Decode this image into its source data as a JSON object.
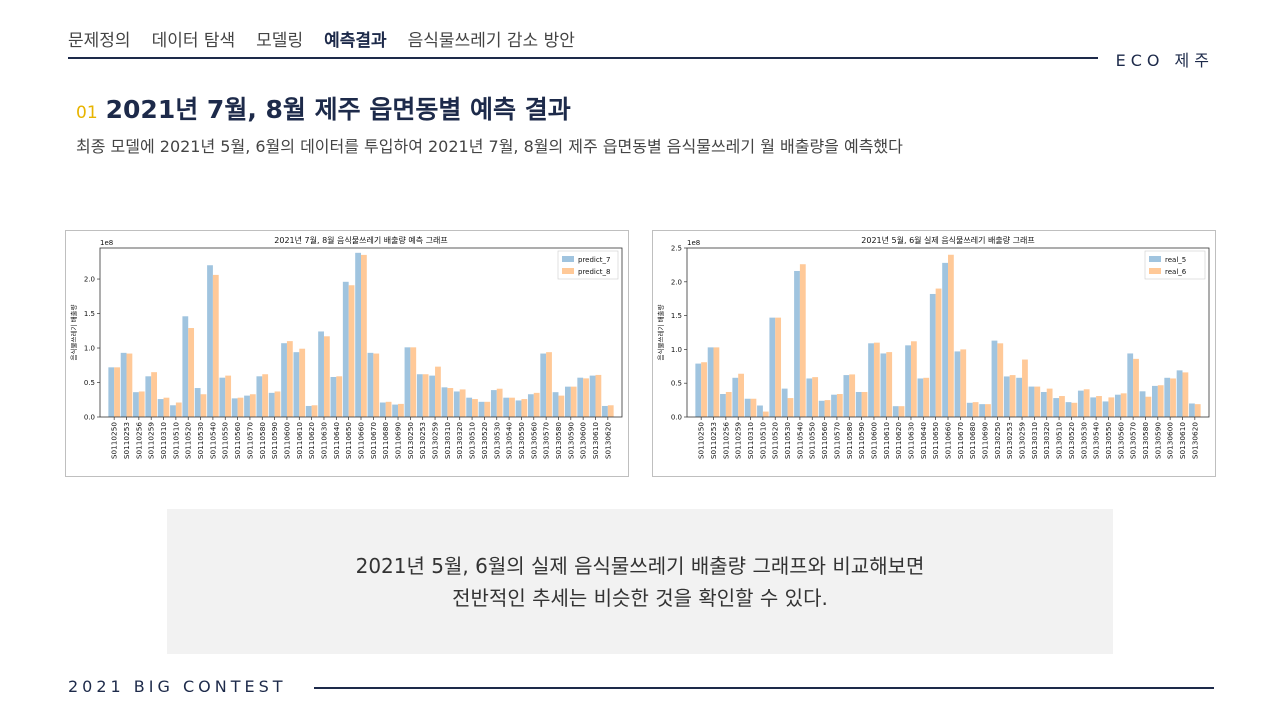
{
  "nav": {
    "items": [
      {
        "label": "문제정의",
        "active": false
      },
      {
        "label": "데이터 탐색",
        "active": false
      },
      {
        "label": "모델링",
        "active": false
      },
      {
        "label": "예측결과",
        "active": true
      },
      {
        "label": "음식물쓰레기 감소 방안",
        "active": false
      }
    ]
  },
  "brand": "ECO 제주",
  "section": {
    "number": "01",
    "title": "2021년 7월, 8월 제주 읍면동별 예측 결과",
    "subtitle": "최종 모델에 2021년 5월, 6월의 데이터를 투입하여 2021년 7월, 8월의 제주 읍면동별 음식물쓰레기 월 배출량을 예측했다"
  },
  "summary": {
    "line1": "2021년 5월, 6월의 실제 음식물쓰레기 배출량 그래프와 비교해보면",
    "line2": "전반적인 추세는 비슷한 것을 확인할 수 있다."
  },
  "footer": "2021 BIG CONTEST",
  "chart_data": [
    {
      "type": "bar",
      "title": "2021년 7월, 8월 음식물쓰레기 배출량 예측 그래프",
      "ylabel": "음식물쓰레기 배출량",
      "xlabel": "",
      "scale_label": "1e8",
      "ylim": [
        0,
        2.45
      ],
      "yticks": [
        "0.0",
        "0.5",
        "1.0",
        "1.5",
        "2.0"
      ],
      "legend_position": "top-right",
      "colors": [
        "#8fbad9",
        "#ffbf86"
      ],
      "categories": [
        "S0110250",
        "S0110253",
        "S0110256",
        "S0110259",
        "S0110310",
        "S0110510",
        "S0110520",
        "S0110530",
        "S0110540",
        "S0110550",
        "S0110560",
        "S0110570",
        "S0110580",
        "S0110590",
        "S0110600",
        "S0110610",
        "S0110620",
        "S0110630",
        "S0110640",
        "S0110650",
        "S0110660",
        "S0110670",
        "S0110680",
        "S0110690",
        "S0130250",
        "S0130253",
        "S0130259",
        "S0130310",
        "S0130320",
        "S0130510",
        "S0130520",
        "S0130530",
        "S0130540",
        "S0130550",
        "S0130560",
        "S0130570",
        "S0130580",
        "S0130590",
        "S0130600",
        "S0130610",
        "S0130620"
      ],
      "series": [
        {
          "name": "predict_7",
          "values": [
            0.72,
            0.93,
            0.36,
            0.59,
            0.26,
            0.17,
            1.46,
            0.42,
            2.2,
            0.57,
            0.27,
            0.31,
            0.59,
            0.35,
            1.07,
            0.94,
            0.16,
            1.24,
            0.58,
            1.96,
            2.38,
            0.93,
            0.21,
            0.18,
            1.01,
            0.62,
            0.6,
            0.43,
            0.37,
            0.28,
            0.22,
            0.39,
            0.28,
            0.24,
            0.33,
            0.92,
            0.36,
            0.44,
            0.57,
            0.6,
            0.16
          ]
        },
        {
          "name": "predict_8",
          "values": [
            0.72,
            0.92,
            0.37,
            0.65,
            0.28,
            0.21,
            1.29,
            0.33,
            2.06,
            0.6,
            0.28,
            0.33,
            0.62,
            0.37,
            1.1,
            0.99,
            0.17,
            1.17,
            0.59,
            1.91,
            2.35,
            0.92,
            0.22,
            0.19,
            1.01,
            0.62,
            0.73,
            0.42,
            0.4,
            0.26,
            0.22,
            0.41,
            0.28,
            0.26,
            0.35,
            0.94,
            0.31,
            0.44,
            0.56,
            0.61,
            0.17
          ]
        }
      ]
    },
    {
      "type": "bar",
      "title": "2021년 5월, 6월 실제 음식물쓰레기 배출량 그래프",
      "ylabel": "음식물쓰레기 배출량",
      "xlabel": "",
      "scale_label": "1e8",
      "ylim": [
        0,
        2.5
      ],
      "yticks": [
        "0.0",
        "0.5",
        "1.0",
        "1.5",
        "2.0",
        "2.5"
      ],
      "legend_position": "top-right",
      "colors": [
        "#8fbad9",
        "#ffbf86"
      ],
      "categories": [
        "S0110250",
        "S0110253",
        "S0110256",
        "S0110259",
        "S0110310",
        "S0110510",
        "S0110520",
        "S0110530",
        "S0110540",
        "S0110550",
        "S0110560",
        "S0110570",
        "S0110580",
        "S0110590",
        "S0110600",
        "S0110610",
        "S0110620",
        "S0110630",
        "S0110640",
        "S0110650",
        "S0110660",
        "S0110670",
        "S0110680",
        "S0110690",
        "S0130250",
        "S0130253",
        "S0130259",
        "S0130310",
        "S0130320",
        "S0130510",
        "S0130520",
        "S0130530",
        "S0130540",
        "S0130550",
        "S0130560",
        "S0130570",
        "S0130580",
        "S0130590",
        "S0130600",
        "S0130610",
        "S0130620"
      ],
      "series": [
        {
          "name": "real_5",
          "values": [
            0.79,
            1.03,
            0.34,
            0.58,
            0.27,
            0.17,
            1.47,
            0.42,
            2.16,
            0.57,
            0.24,
            0.33,
            0.62,
            0.37,
            1.09,
            0.94,
            0.16,
            1.06,
            0.57,
            1.82,
            2.28,
            0.97,
            0.21,
            0.19,
            1.13,
            0.6,
            0.58,
            0.45,
            0.37,
            0.28,
            0.22,
            0.39,
            0.29,
            0.23,
            0.33,
            0.94,
            0.38,
            0.46,
            0.58,
            0.69,
            0.2
          ]
        },
        {
          "name": "real_6",
          "values": [
            0.81,
            1.03,
            0.37,
            0.64,
            0.27,
            0.08,
            1.47,
            0.28,
            2.26,
            0.59,
            0.25,
            0.34,
            0.63,
            0.37,
            1.1,
            0.96,
            0.16,
            1.12,
            0.58,
            1.9,
            2.4,
            1.0,
            0.22,
            0.19,
            1.09,
            0.62,
            0.85,
            0.45,
            0.42,
            0.31,
            0.21,
            0.41,
            0.31,
            0.29,
            0.35,
            0.86,
            0.3,
            0.47,
            0.57,
            0.66,
            0.19
          ]
        }
      ]
    }
  ]
}
